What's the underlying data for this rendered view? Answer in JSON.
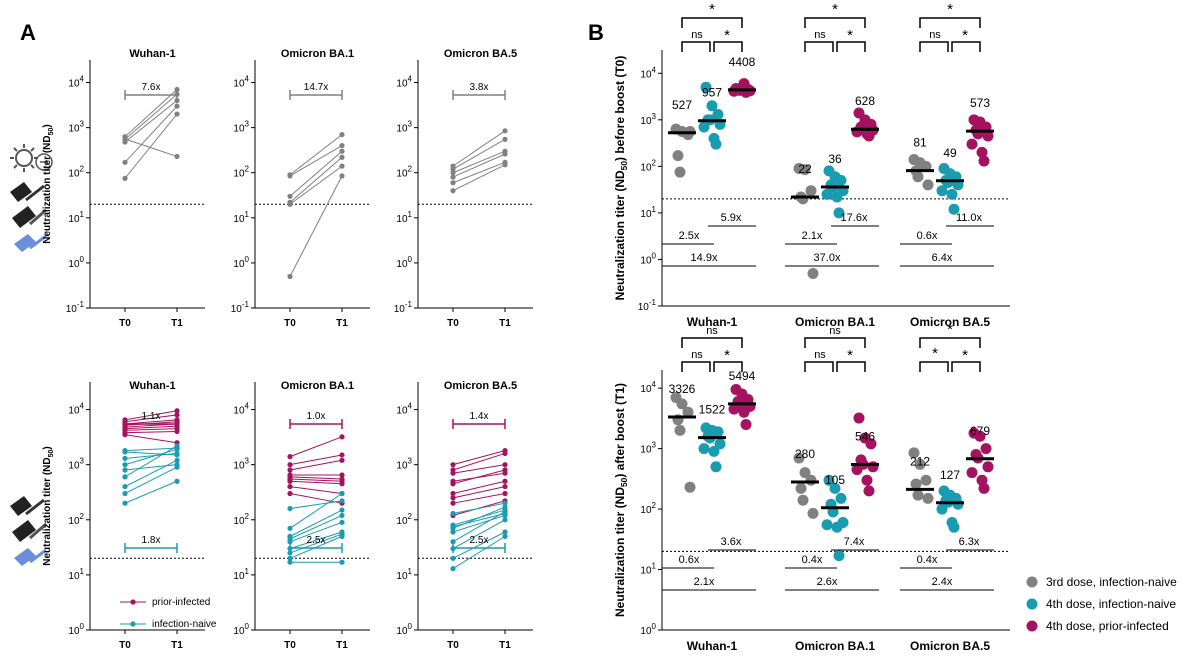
{
  "panel_labels": {
    "a": "A",
    "b": "B"
  },
  "colors": {
    "gray": "#808080",
    "teal": "#1a9cb0",
    "crimson": "#a5125f",
    "ref": "#000000"
  },
  "icons": {
    "top": [
      "virus-icon",
      "vaccine-syringe-icon"
    ],
    "bottom": [
      "vaccine-syringe-icon"
    ]
  },
  "chart_data": [
    {
      "type": "line",
      "title": "Wuhan-1",
      "panel": "A-top-1",
      "ylabel": "Neutralization titer (ND50)",
      "yscale": "log",
      "ylim_exp": [
        -1,
        4.5
      ],
      "categories": [
        "T0",
        "T1"
      ],
      "limit_of_detection": 20,
      "bracket": {
        "label": "7.6x",
        "color": "gray"
      },
      "series": [
        {
          "name": "3rd dose, infection-naive",
          "color": "gray",
          "pairs": [
            [
              630,
              7000
            ],
            [
              550,
              5500
            ],
            [
              480,
              4000
            ],
            [
              170,
              3000
            ],
            [
              75,
              2000
            ],
            [
              560,
              230
            ]
          ]
        }
      ]
    },
    {
      "type": "line",
      "title": "Omicron BA.1",
      "panel": "A-top-2",
      "yscale": "log",
      "ylim_exp": [
        -1,
        4.5
      ],
      "categories": [
        "T0",
        "T1"
      ],
      "limit_of_detection": 20,
      "bracket": {
        "label": "14.7x",
        "color": "gray"
      },
      "series": [
        {
          "name": "3rd dose, infection-naive",
          "color": "gray",
          "pairs": [
            [
              90,
              700
            ],
            [
              85,
              400
            ],
            [
              30,
              300
            ],
            [
              22,
              220
            ],
            [
              20,
              140
            ],
            [
              0.5,
              85
            ]
          ]
        }
      ]
    },
    {
      "type": "line",
      "title": "Omicron BA.5",
      "panel": "A-top-3",
      "yscale": "log",
      "ylim_exp": [
        -1,
        4.5
      ],
      "categories": [
        "T0",
        "T1"
      ],
      "limit_of_detection": 20,
      "bracket": {
        "label": "3.8x",
        "color": "gray"
      },
      "series": [
        {
          "name": "3rd dose, infection-naive",
          "color": "gray",
          "pairs": [
            [
              140,
              850
            ],
            [
              120,
              550
            ],
            [
              100,
              300
            ],
            [
              80,
              260
            ],
            [
              60,
              170
            ],
            [
              40,
              150
            ]
          ]
        }
      ]
    },
    {
      "type": "line",
      "title": "Wuhan-1",
      "panel": "A-bottom-1",
      "ylabel": "Neutralization titer (ND50)",
      "yscale": "log",
      "ylim_exp": [
        0,
        4.5
      ],
      "categories": [
        "T0",
        "T1"
      ],
      "limit_of_detection": 20,
      "bracket_top": {
        "label": "1.1x",
        "color": "crimson"
      },
      "bracket_bottom": {
        "label": "1.8x",
        "color": "teal"
      },
      "legend": [
        "prior-infected",
        "infection-naive"
      ],
      "series": [
        {
          "name": "prior-infected",
          "color": "crimson",
          "pairs": [
            [
              6500,
              9500
            ],
            [
              6000,
              8000
            ],
            [
              5500,
              6500
            ],
            [
              5200,
              6000
            ],
            [
              4800,
              5500
            ],
            [
              4500,
              5000
            ],
            [
              4200,
              4500
            ],
            [
              3800,
              4000
            ],
            [
              3500,
              2500
            ]
          ]
        },
        {
          "name": "infection-naive",
          "color": "teal",
          "pairs": [
            [
              1800,
              2000
            ],
            [
              1700,
              1500
            ],
            [
              1300,
              1600
            ],
            [
              1000,
              1900
            ],
            [
              800,
              1000
            ],
            [
              600,
              2200
            ],
            [
              400,
              1200
            ],
            [
              300,
              900
            ],
            [
              200,
              500
            ]
          ]
        }
      ]
    },
    {
      "type": "line",
      "title": "Omicron BA.1",
      "panel": "A-bottom-2",
      "yscale": "log",
      "ylim_exp": [
        0,
        4.5
      ],
      "categories": [
        "T0",
        "T1"
      ],
      "limit_of_detection": 20,
      "bracket_top": {
        "label": "1.0x",
        "color": "crimson"
      },
      "bracket_bottom": {
        "label": "2.5x",
        "color": "teal"
      },
      "series": [
        {
          "name": "prior-infected",
          "color": "crimson",
          "pairs": [
            [
              1400,
              3200
            ],
            [
              1000,
              1500
            ],
            [
              800,
              1200
            ],
            [
              650,
              650
            ],
            [
              600,
              550
            ],
            [
              550,
              500
            ],
            [
              500,
              450
            ],
            [
              400,
              300
            ],
            [
              300,
              200
            ]
          ]
        },
        {
          "name": "infection-naive",
          "color": "teal",
          "pairs": [
            [
              160,
              220
            ],
            [
              70,
              300
            ],
            [
              50,
              150
            ],
            [
              45,
              120
            ],
            [
              40,
              90
            ],
            [
              30,
              60
            ],
            [
              25,
              55
            ],
            [
              20,
              50
            ],
            [
              17,
              17
            ]
          ]
        }
      ]
    },
    {
      "type": "line",
      "title": "Omicron BA.5",
      "panel": "A-bottom-3",
      "yscale": "log",
      "ylim_exp": [
        0,
        4.5
      ],
      "categories": [
        "T0",
        "T1"
      ],
      "limit_of_detection": 20,
      "bracket_top": {
        "label": "1.4x",
        "color": "crimson"
      },
      "bracket_bottom": {
        "label": "2.5x",
        "color": "teal"
      },
      "series": [
        {
          "name": "prior-infected",
          "color": "crimson",
          "pairs": [
            [
              1000,
              1800
            ],
            [
              800,
              1600
            ],
            [
              700,
              1000
            ],
            [
              500,
              700
            ],
            [
              450,
              800
            ],
            [
              300,
              500
            ],
            [
              250,
              400
            ],
            [
              200,
              300
            ],
            [
              120,
              220
            ]
          ]
        },
        {
          "name": "infection-naive",
          "color": "teal",
          "pairs": [
            [
              130,
              200
            ],
            [
              80,
              150
            ],
            [
              75,
              130
            ],
            [
              70,
              170
            ],
            [
              60,
              120
            ],
            [
              40,
              140
            ],
            [
              30,
              100
            ],
            [
              20,
              60
            ],
            [
              13,
              50
            ]
          ]
        }
      ]
    },
    {
      "type": "scatter",
      "panel": "B-top",
      "ylabel": "Neutralization titer (ND50) before boost (T0)",
      "yscale": "log",
      "ylim_exp": [
        -1,
        4.5
      ],
      "limit_of_detection": 20,
      "categories": [
        "Wuhan-1",
        "Omicron BA.1",
        "Omicron BA.5"
      ],
      "groups": [
        {
          "medians": [
            527,
            957,
            4408
          ],
          "points": [
            [
              630,
              560,
              480,
              170,
              75,
              560
            ],
            [
              5000,
              2000,
              1300,
              1000,
              1000,
              800,
              700,
              400,
              300
            ],
            [
              4700,
              4600,
              4500,
              4400,
              4300,
              4200,
              4100,
              6000,
              3900
            ]
          ],
          "sig_top": "*",
          "sig_left": "ns",
          "sig_right": "*",
          "folds": [
            "2.5x",
            "5.9x",
            "14.9x"
          ]
        },
        {
          "medians": [
            22,
            36,
            628
          ],
          "points": [
            [
              90,
              85,
              30,
              22,
              20,
              0.5
            ],
            [
              80,
              60,
              50,
              40,
              35,
              30,
              25,
              22,
              10
            ],
            [
              1400,
              1000,
              800,
              700,
              650,
              600,
              550,
              500,
              450
            ]
          ],
          "sig_top": "*",
          "sig_left": "ns",
          "sig_right": "*",
          "folds": [
            "2.1x",
            "17.6x",
            "37.0x"
          ]
        },
        {
          "medians": [
            81,
            49,
            573
          ],
          "points": [
            [
              140,
              120,
              100,
              80,
              60,
              40
            ],
            [
              90,
              70,
              60,
              50,
              45,
              40,
              30,
              25,
              12
            ],
            [
              1000,
              900,
              700,
              600,
              500,
              450,
              300,
              200,
              130
            ]
          ],
          "sig_top": "*",
          "sig_left": "ns",
          "sig_right": "*",
          "folds": [
            "0.6x",
            "11.0x",
            "6.4x"
          ]
        }
      ]
    },
    {
      "type": "scatter",
      "panel": "B-bottom",
      "ylabel": "Neutralization titer (ND50) after boost (T1)",
      "yscale": "log",
      "ylim_exp": [
        0,
        4.5
      ],
      "limit_of_detection": 20,
      "categories": [
        "Wuhan-1",
        "Omicron BA.1",
        "Omicron BA.5"
      ],
      "groups": [
        {
          "medians": [
            3326,
            1522,
            5494
          ],
          "points": [
            [
              7000,
              5500,
              4000,
              3000,
              2000,
              230
            ],
            [
              2200,
              2000,
              1900,
              1600,
              1500,
              1200,
              1000,
              900,
              500
            ],
            [
              9500,
              8000,
              6500,
              6000,
              5500,
              5000,
              4500,
              4000,
              2500
            ]
          ],
          "sig_top": "ns",
          "sig_left": "ns",
          "sig_right": "*",
          "folds": [
            "0.6x",
            "3.6x",
            "2.1x"
          ]
        },
        {
          "medians": [
            280,
            105,
            546
          ],
          "points": [
            [
              700,
              400,
              300,
              220,
              140,
              85
            ],
            [
              300,
              220,
              150,
              120,
              90,
              60,
              55,
              50,
              17
            ],
            [
              3200,
              1500,
              1200,
              650,
              550,
              500,
              450,
              300,
              200
            ]
          ],
          "sig_top": "ns",
          "sig_left": "ns",
          "sig_right": "*",
          "folds": [
            "0.4x",
            "7.4x",
            "2.6x"
          ]
        },
        {
          "medians": [
            212,
            127,
            679
          ],
          "points": [
            [
              850,
              550,
              300,
              260,
              170,
              150
            ],
            [
              200,
              170,
              150,
              140,
              130,
              120,
              100,
              60,
              50
            ],
            [
              1800,
              1600,
              1000,
              800,
              700,
              500,
              400,
              300,
              220
            ]
          ],
          "sig_top": "*",
          "sig_left": "*",
          "sig_right": "*",
          "folds": [
            "0.4x",
            "6.3x",
            "2.4x"
          ]
        }
      ],
      "legend": [
        "3rd dose, infection-naive",
        "4th dose, infection-naive",
        "4th dose, prior-infected"
      ]
    }
  ]
}
